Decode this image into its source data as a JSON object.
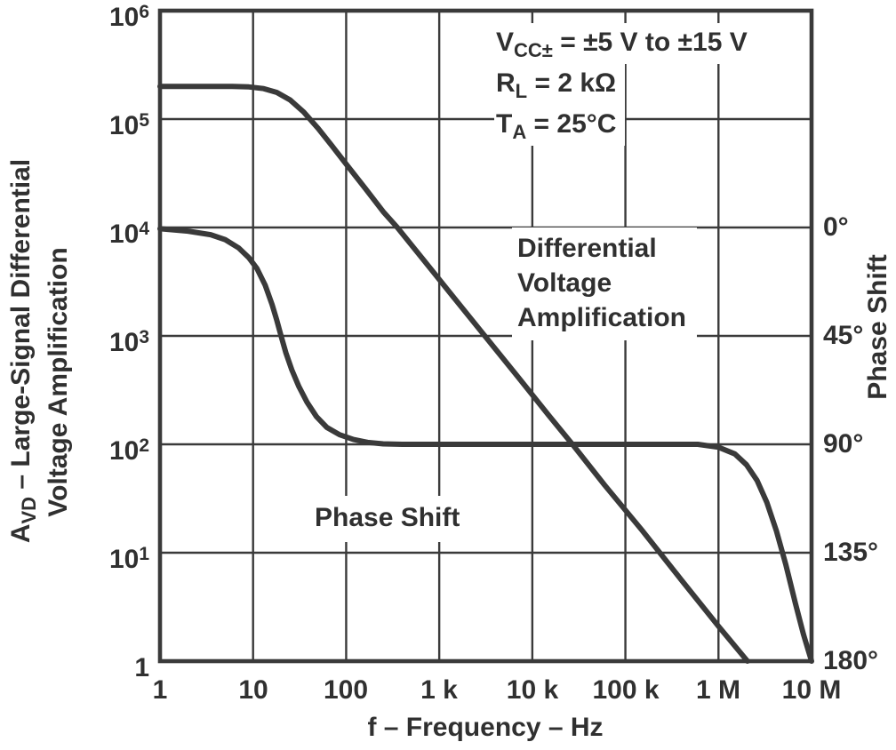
{
  "colors": {
    "background": "#ffffff",
    "line": "#3a3a3a",
    "text": "#303030"
  },
  "axes": {
    "left": {
      "title_line1": {
        "base": "A",
        "sub": "VD",
        "rest": " – Large-Signal Differential"
      },
      "title_line2": "Voltage Amplification",
      "ticks": [
        {
          "base": "10",
          "sup": "6"
        },
        {
          "base": "10",
          "sup": "5"
        },
        {
          "base": "10",
          "sup": "4"
        },
        {
          "base": "10",
          "sup": "3"
        },
        {
          "base": "10",
          "sup": "2"
        },
        {
          "base": "10",
          "sup": "1"
        },
        {
          "base": "1",
          "sup": ""
        }
      ]
    },
    "right": {
      "title": "Phase Shift",
      "ticks": [
        "0°",
        "45°",
        "90°",
        "135°",
        "180°"
      ]
    },
    "bottom": {
      "title": "f – Frequency – Hz",
      "ticks": [
        "1",
        "10",
        "100",
        "1 k",
        "10 k",
        "100 k",
        "1 M",
        "10 M"
      ]
    }
  },
  "annotations": {
    "conditions": [
      {
        "base": "V",
        "sub": "CC±",
        "rest": " = ±5 V to ±15 V"
      },
      {
        "base": "R",
        "sub": "L",
        "rest": " = 2 kΩ"
      },
      {
        "base": "T",
        "sub": "A",
        "rest": " = 25°C"
      }
    ],
    "amp_label": {
      "line1": "Differential",
      "line2": "Voltage",
      "line3": "Amplification"
    },
    "phase_label": "Phase Shift"
  },
  "chart_data": {
    "type": "line",
    "title": "Large-Signal Differential Voltage Amplification and Phase Shift vs Frequency",
    "x_axis": {
      "label": "f – Frequency – Hz",
      "scale": "log",
      "range": [
        1,
        10000000
      ],
      "tick_labels": [
        "1",
        "10",
        "100",
        "1 k",
        "10 k",
        "100 k",
        "1 M",
        "10 M"
      ]
    },
    "y_left": {
      "label": "AVD – Large-Signal Differential Voltage Amplification",
      "scale": "log",
      "range": [
        1,
        1000000
      ],
      "tick_labels": [
        "1",
        "10^1",
        "10^2",
        "10^3",
        "10^4",
        "10^5",
        "10^6"
      ]
    },
    "y_right": {
      "label": "Phase Shift",
      "scale": "linear",
      "range_deg": [
        0,
        180
      ],
      "tick_step_deg": 45,
      "zero_aligned_with_left_value": 10000
    },
    "grid": true,
    "conditions": [
      "VCC± = ±5 V to ±15 V",
      "RL = 2 kΩ",
      "TA = 25°C"
    ],
    "series": [
      {
        "name": "Differential Voltage Amplification",
        "axis": "left",
        "points": [
          [
            1,
            200000
          ],
          [
            6,
            200000
          ],
          [
            9,
            198000
          ],
          [
            13,
            191000
          ],
          [
            18,
            176000
          ],
          [
            25,
            150000
          ],
          [
            35,
            116000
          ],
          [
            50,
            82000
          ],
          [
            70,
            57000
          ],
          [
            100,
            38500
          ],
          [
            160,
            23000
          ],
          [
            250,
            14000
          ],
          [
            355,
            10000
          ],
          [
            700,
            4850
          ],
          [
            1500,
            2150
          ],
          [
            3000,
            1030
          ],
          [
            7000,
            420
          ],
          [
            15000,
            185
          ],
          [
            27000,
            100
          ],
          [
            60000,
            42
          ],
          [
            150000,
            16.2
          ],
          [
            400000,
            5.6
          ],
          [
            1000000,
            2.1
          ],
          [
            2050000,
            1
          ]
        ]
      },
      {
        "name": "Phase Shift",
        "axis": "right",
        "points": [
          [
            1,
            0.5
          ],
          [
            2,
            1.5
          ],
          [
            3.5,
            3
          ],
          [
            5,
            5
          ],
          [
            7,
            8.5
          ],
          [
            9,
            12.5
          ],
          [
            11,
            17
          ],
          [
            13.5,
            24
          ],
          [
            16,
            32
          ],
          [
            18,
            38.5
          ],
          [
            20,
            45
          ],
          [
            22.5,
            52
          ],
          [
            26,
            59
          ],
          [
            31,
            66
          ],
          [
            38,
            72.5
          ],
          [
            48,
            78.5
          ],
          [
            62,
            83
          ],
          [
            85,
            86
          ],
          [
            120,
            88
          ],
          [
            170,
            89.2
          ],
          [
            250,
            89.8
          ],
          [
            400,
            90
          ],
          [
            600000,
            90
          ],
          [
            1000000,
            91.2
          ],
          [
            1500000,
            94
          ],
          [
            2000000,
            98.5
          ],
          [
            2600000,
            105
          ],
          [
            3300000,
            114
          ],
          [
            4200000,
            126
          ],
          [
            5300000,
            140
          ],
          [
            6700000,
            156
          ],
          [
            8200000,
            169
          ],
          [
            9300000,
            176
          ],
          [
            10000000,
            180
          ]
        ]
      }
    ]
  }
}
